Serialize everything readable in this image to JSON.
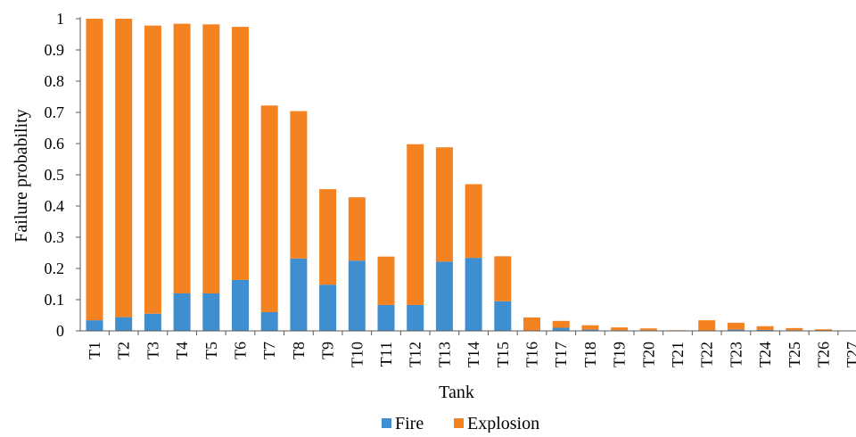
{
  "chart_data": {
    "type": "bar",
    "stacked": true,
    "title": "",
    "xlabel": "Tank",
    "ylabel": "Failure probability",
    "ylim": [
      0,
      1
    ],
    "yticks": [
      "0",
      "0.1",
      "0.2",
      "0.3",
      "0.4",
      "0.5",
      "0.6",
      "0.7",
      "0.8",
      "0.9",
      "1"
    ],
    "grid": false,
    "legend_position": "bottom",
    "categories": [
      "T1",
      "T2",
      "T3",
      "T4",
      "T5",
      "T6",
      "T7",
      "T8",
      "T9",
      "T10",
      "T11",
      "T12",
      "T13",
      "T14",
      "T15",
      "T16",
      "T17",
      "T18",
      "T19",
      "T20",
      "T21",
      "T22",
      "T23",
      "T24",
      "T25",
      "T26",
      "T27"
    ],
    "series": [
      {
        "name": "Fire",
        "color": "#3E8ED0",
        "values": [
          0.034,
          0.044,
          0.055,
          0.12,
          0.12,
          0.163,
          0.06,
          0.232,
          0.148,
          0.225,
          0.083,
          0.083,
          0.222,
          0.234,
          0.095,
          0.0,
          0.01,
          0.004,
          0.002,
          0.002,
          0.0,
          0.0,
          0.004,
          0.003,
          0.002,
          0.001,
          0.0
        ]
      },
      {
        "name": "Explosion",
        "color": "#F58221",
        "values": [
          0.966,
          0.956,
          0.923,
          0.864,
          0.862,
          0.811,
          0.662,
          0.472,
          0.306,
          0.203,
          0.155,
          0.515,
          0.366,
          0.236,
          0.144,
          0.043,
          0.022,
          0.014,
          0.009,
          0.006,
          0.002,
          0.034,
          0.022,
          0.012,
          0.007,
          0.004,
          0.0
        ]
      }
    ]
  }
}
